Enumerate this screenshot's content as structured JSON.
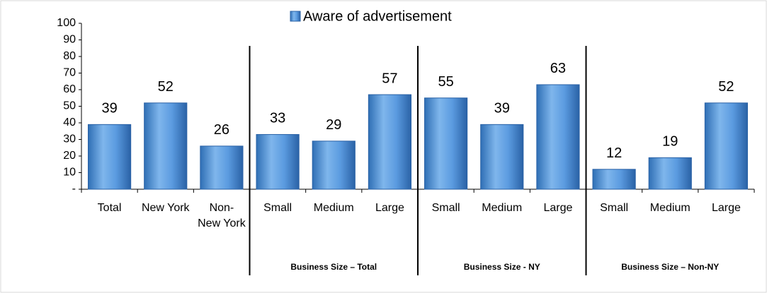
{
  "chart_data": {
    "type": "bar",
    "legend": "Aware of advertisement",
    "categories": [
      "Total",
      "New York",
      "Non-New York",
      "Small",
      "Medium",
      "Large",
      "Small",
      "Medium",
      "Large",
      "Small",
      "Medium",
      "Large"
    ],
    "values": [
      39,
      52,
      26,
      33,
      29,
      57,
      55,
      39,
      63,
      12,
      19,
      52
    ],
    "color": "#4a8fd6",
    "groups": [
      "Business Size – Total",
      "Business Size - NY",
      "Business Size – Non-NY"
    ],
    "ylim": [
      0,
      100
    ],
    "yticks": [
      {
        "value": 0,
        "label": "-"
      },
      10,
      20,
      30,
      40,
      50,
      60,
      70,
      80,
      90,
      100
    ],
    "grid": false
  }
}
